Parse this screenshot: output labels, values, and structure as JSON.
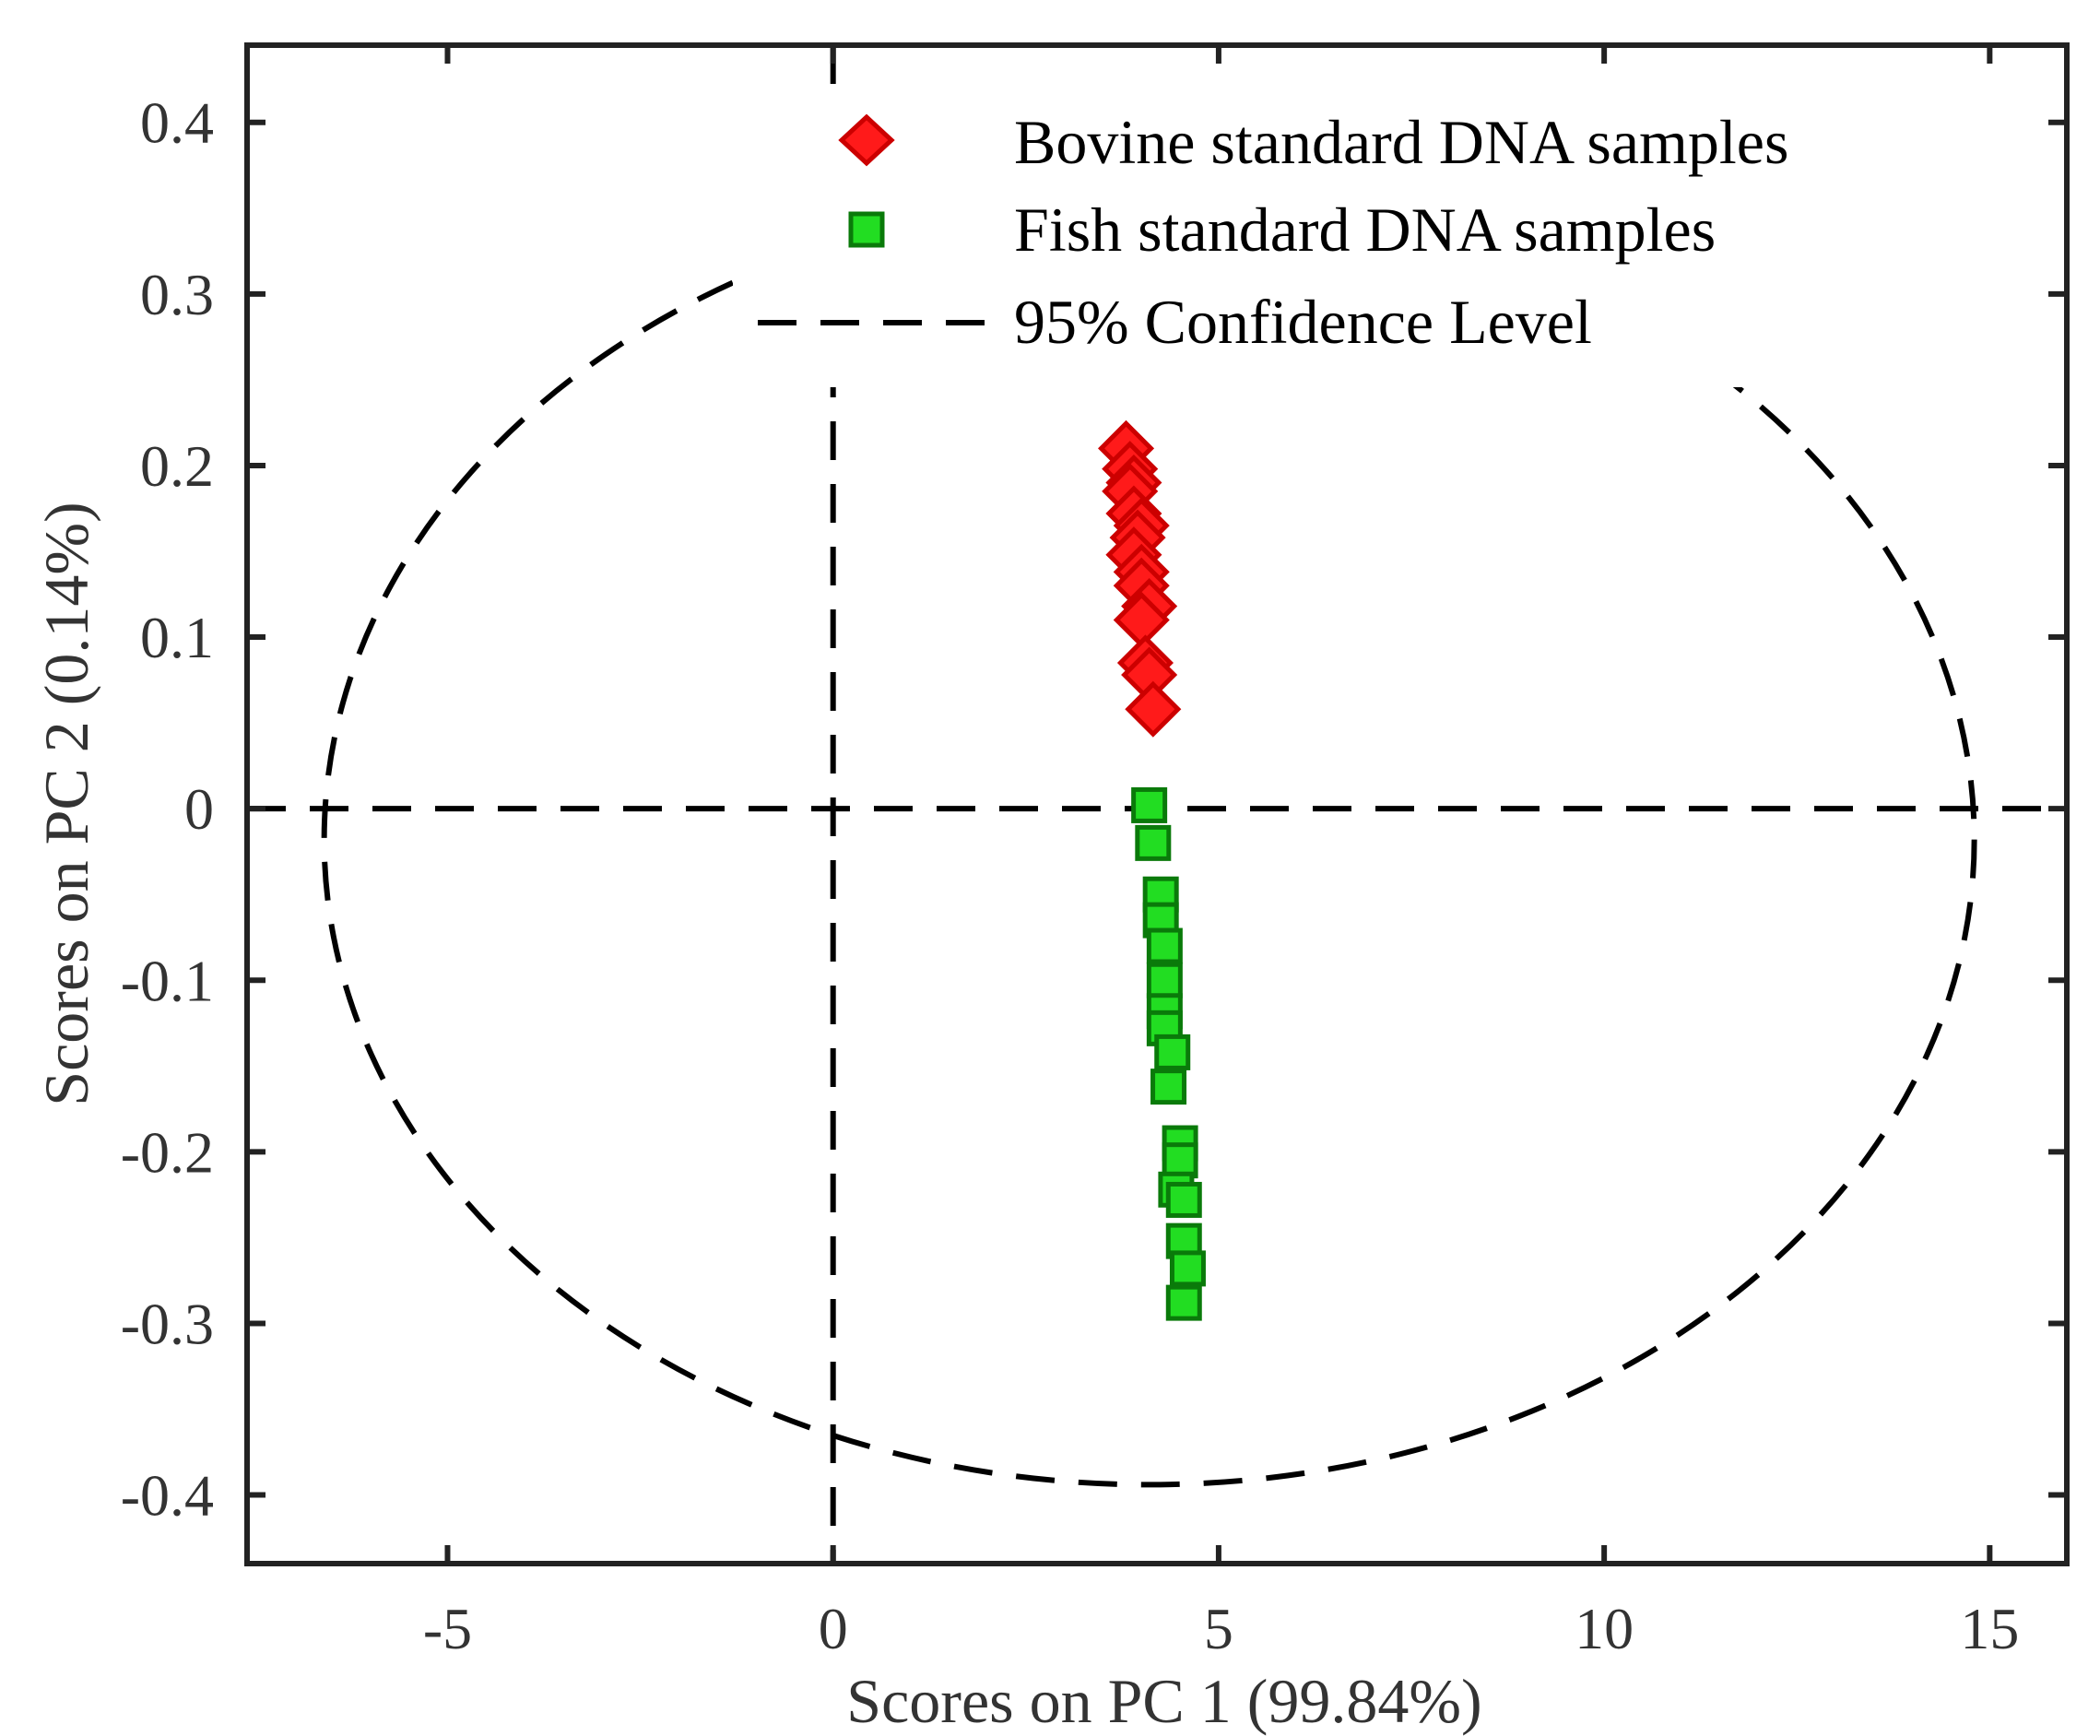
{
  "chart_data": {
    "type": "scatter",
    "title": "",
    "xlabel": "Scores on PC 1 (99.84%)",
    "ylabel": "Scores on PC 2 (0.14%)",
    "xlim": [
      -7.6,
      16
    ],
    "ylim": [
      -0.44,
      0.445
    ],
    "xticks": [
      -5,
      0,
      5,
      10,
      15
    ],
    "yticks": [
      0.4,
      0.3,
      0.2,
      0.1,
      0,
      -0.1,
      -0.2,
      -0.3,
      -0.4
    ],
    "xtick_labels": [
      "-5",
      "0",
      "5",
      "10",
      "15"
    ],
    "ytick_labels": [
      "0.4",
      "0.3",
      "0.2",
      "0.1",
      "0",
      "-0.1",
      "-0.2",
      "-0.3",
      "-0.4"
    ],
    "reference_lines": {
      "x": 0,
      "y": 0,
      "style": "dashed"
    },
    "series": [
      {
        "name": "Bovine standard DNA samples",
        "marker": "diamond",
        "color": "#ff1a1a",
        "edge_color": "#cc0000",
        "points": [
          [
            3.8,
            0.21
          ],
          [
            3.85,
            0.198
          ],
          [
            3.9,
            0.19
          ],
          [
            3.85,
            0.185
          ],
          [
            3.9,
            0.172
          ],
          [
            4.0,
            0.165
          ],
          [
            3.95,
            0.158
          ],
          [
            3.9,
            0.148
          ],
          [
            4.0,
            0.138
          ],
          [
            4.0,
            0.13
          ],
          [
            4.1,
            0.118
          ],
          [
            4.0,
            0.11
          ],
          [
            4.05,
            0.085
          ],
          [
            4.1,
            0.078
          ],
          [
            4.15,
            0.058
          ]
        ]
      },
      {
        "name": "Fish standard DNA samples",
        "marker": "square",
        "color": "#22dd22",
        "edge_color": "#0a7a0a",
        "points": [
          [
            4.1,
            0.002
          ],
          [
            4.15,
            -0.02
          ],
          [
            4.25,
            -0.05
          ],
          [
            4.25,
            -0.065
          ],
          [
            4.3,
            -0.08
          ],
          [
            4.3,
            -0.1
          ],
          [
            4.3,
            -0.118
          ],
          [
            4.3,
            -0.128
          ],
          [
            4.4,
            -0.142
          ],
          [
            4.35,
            -0.162
          ],
          [
            4.5,
            -0.195
          ],
          [
            4.5,
            -0.205
          ],
          [
            4.45,
            -0.222
          ],
          [
            4.55,
            -0.228
          ],
          [
            4.55,
            -0.252
          ],
          [
            4.6,
            -0.268
          ],
          [
            4.55,
            -0.288
          ]
        ]
      }
    ],
    "confidence_ellipse": {
      "name": "95% Confidence Level",
      "center": [
        4.1,
        -0.018
      ],
      "radii": [
        10.7,
        0.376
      ],
      "style": "dashed"
    },
    "legend": {
      "position": "top-right",
      "entries": [
        "Bovine standard DNA samples",
        "Fish standard DNA samples",
        "95% Confidence Level"
      ]
    }
  }
}
